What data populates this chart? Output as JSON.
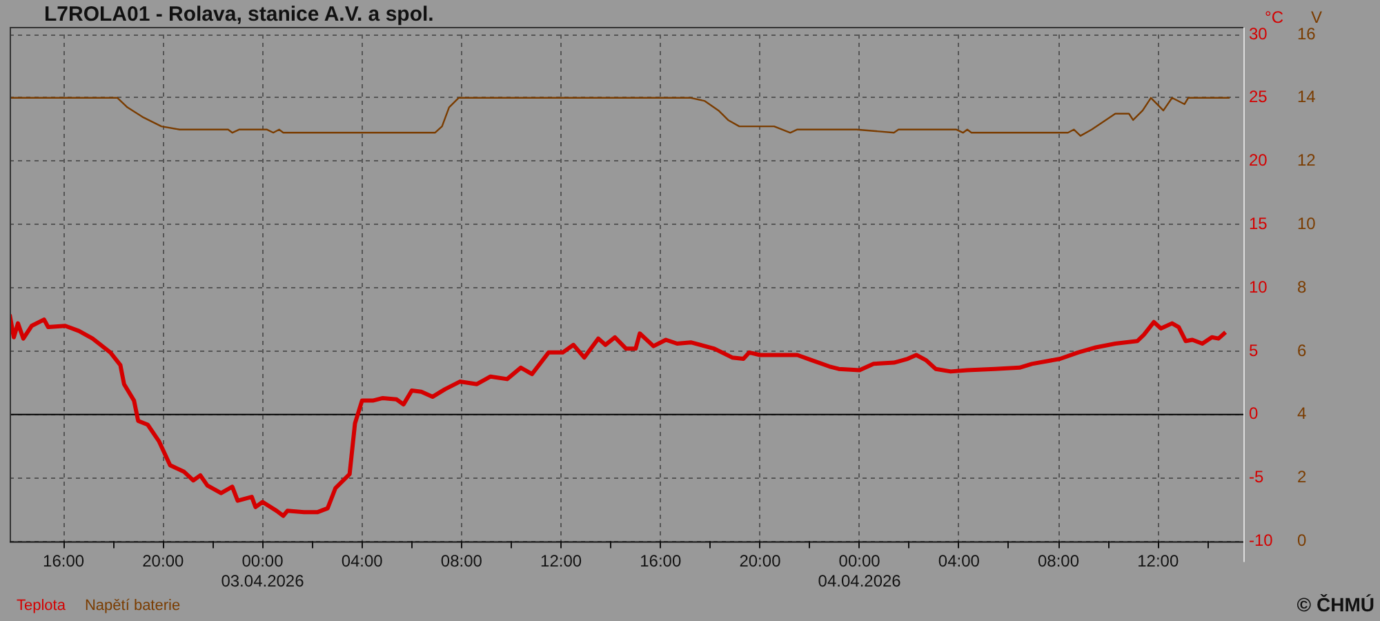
{
  "chart_data": {
    "type": "line",
    "title": "L7ROLA01 - Rolava, stanice A.V. a spol.",
    "ylabel": "°C",
    "y2label": "V",
    "xlim": [
      "2026-04-02T13:50",
      "2026-04-04T15:26"
    ],
    "xticks": [
      {
        "value": "2026-04-02T16:00",
        "label": "16:00"
      },
      {
        "value": "2026-04-02T18:00",
        "label": null
      },
      {
        "value": "2026-04-02T20:00",
        "label": "20:00"
      },
      {
        "value": "2026-04-02T22:00",
        "label": null
      },
      {
        "value": "2026-04-03T00:00",
        "label": "00:00\n03.04.2026"
      },
      {
        "value": "2026-04-03T02:00",
        "label": null
      },
      {
        "value": "2026-04-03T04:00",
        "label": "04:00"
      },
      {
        "value": "2026-04-03T06:00",
        "label": null
      },
      {
        "value": "2026-04-03T08:00",
        "label": "08:00"
      },
      {
        "value": "2026-04-03T10:00",
        "label": null
      },
      {
        "value": "2026-04-03T12:00",
        "label": "12:00"
      },
      {
        "value": "2026-04-03T14:00",
        "label": null
      },
      {
        "value": "2026-04-03T16:00",
        "label": "16:00"
      },
      {
        "value": "2026-04-03T18:00",
        "label": null
      },
      {
        "value": "2026-04-03T20:00",
        "label": "20:00"
      },
      {
        "value": "2026-04-03T22:00",
        "label": null
      },
      {
        "value": "2026-04-04T00:00",
        "label": "00:00\n04.04.2026"
      },
      {
        "value": "2026-04-04T02:00",
        "label": null
      },
      {
        "value": "2026-04-04T04:00",
        "label": "04:00"
      },
      {
        "value": "2026-04-04T06:00",
        "label": null
      },
      {
        "value": "2026-04-04T08:00",
        "label": "08:00"
      },
      {
        "value": "2026-04-04T10:00",
        "label": null
      },
      {
        "value": "2026-04-04T12:00",
        "label": "12:00"
      },
      {
        "value": "2026-04-04T14:00",
        "label": null
      }
    ],
    "ylim": [
      -10,
      30
    ],
    "yticks": [
      -10,
      -5,
      0,
      5,
      10,
      15,
      20,
      25,
      30
    ],
    "y2lim": [
      0,
      16
    ],
    "y2ticks": [
      0,
      2,
      4,
      6,
      8,
      10,
      12,
      14,
      16
    ],
    "grid": true,
    "legend": "bottom left",
    "ref_lines": [
      {
        "axis": "y",
        "value": 0,
        "color": "#000000"
      }
    ],
    "annotations": [
      "© ČHMÚ"
    ],
    "series": [
      {
        "name": "Teplota",
        "color": "#d40000",
        "x": [
          "2026-04-02T13:50",
          "2026-04-02T14:00",
          "2026-04-02T14:10",
          "2026-04-02T14:23",
          "2026-04-02T14:43",
          "2026-04-02T15:13",
          "2026-04-02T15:23",
          "2026-04-02T16:04",
          "2026-04-02T16:37",
          "2026-04-02T17:10",
          "2026-04-02T17:53",
          "2026-04-02T18:17",
          "2026-04-02T18:26",
          "2026-04-02T18:50",
          "2026-04-02T19:00",
          "2026-04-02T19:23",
          "2026-04-02T19:50",
          "2026-04-02T20:17",
          "2026-04-02T20:50",
          "2026-04-02T21:13",
          "2026-04-02T21:30",
          "2026-04-02T21:47",
          "2026-04-02T22:20",
          "2026-04-02T22:47",
          "2026-04-02T23:00",
          "2026-04-02T23:34",
          "2026-04-02T23:43",
          "2026-04-03T00:00",
          "2026-04-03T00:34",
          "2026-04-03T00:50",
          "2026-04-03T01:00",
          "2026-04-03T01:40",
          "2026-04-03T02:13",
          "2026-04-03T02:37",
          "2026-04-03T02:56",
          "2026-04-03T03:30",
          "2026-04-03T03:43",
          "2026-04-03T04:00",
          "2026-04-03T04:26",
          "2026-04-03T04:50",
          "2026-04-03T05:23",
          "2026-04-03T05:40",
          "2026-04-03T06:00",
          "2026-04-03T06:23",
          "2026-04-03T06:50",
          "2026-04-03T07:20",
          "2026-04-03T07:56",
          "2026-04-03T08:37",
          "2026-04-03T09:10",
          "2026-04-03T09:50",
          "2026-04-03T10:23",
          "2026-04-03T10:50",
          "2026-04-03T11:30",
          "2026-04-03T12:04",
          "2026-04-03T12:30",
          "2026-04-03T12:56",
          "2026-04-03T13:30",
          "2026-04-03T13:47",
          "2026-04-03T14:10",
          "2026-04-03T14:37",
          "2026-04-03T15:00",
          "2026-04-03T15:10",
          "2026-04-03T15:43",
          "2026-04-03T16:13",
          "2026-04-03T16:40",
          "2026-04-03T17:13",
          "2026-04-03T18:10",
          "2026-04-03T18:53",
          "2026-04-03T19:20",
          "2026-04-03T19:34",
          "2026-04-03T20:00",
          "2026-04-03T21:30",
          "2026-04-03T22:04",
          "2026-04-03T22:47",
          "2026-04-03T23:10",
          "2026-04-04T00:00",
          "2026-04-04T00:34",
          "2026-04-04T01:23",
          "2026-04-04T01:56",
          "2026-04-04T02:17",
          "2026-04-04T02:40",
          "2026-04-04T03:04",
          "2026-04-04T03:40",
          "2026-04-04T04:20",
          "2026-04-04T05:26",
          "2026-04-04T06:26",
          "2026-04-04T06:56",
          "2026-04-04T08:04",
          "2026-04-04T08:47",
          "2026-04-04T09:30",
          "2026-04-04T10:17",
          "2026-04-04T11:10",
          "2026-04-04T11:26",
          "2026-04-04T11:50",
          "2026-04-04T12:07",
          "2026-04-04T12:34",
          "2026-04-04T12:50",
          "2026-04-04T13:07",
          "2026-04-04T13:23",
          "2026-04-04T13:47",
          "2026-04-04T14:10",
          "2026-04-04T14:26",
          "2026-04-04T14:43"
        ],
        "values": [
          7.9,
          6.1,
          7.2,
          6.0,
          7.0,
          7.5,
          6.9,
          7.0,
          6.6,
          6.0,
          4.9,
          3.9,
          2.4,
          1.1,
          -0.5,
          -0.8,
          -2.1,
          -4.0,
          -4.5,
          -5.2,
          -4.8,
          -5.6,
          -6.2,
          -5.7,
          -6.8,
          -6.5,
          -7.3,
          -6.9,
          -7.6,
          -8.0,
          -7.6,
          -7.7,
          -7.7,
          -7.4,
          -5.8,
          -4.7,
          -0.7,
          1.1,
          1.1,
          1.3,
          1.2,
          0.8,
          1.9,
          1.8,
          1.4,
          2.0,
          2.6,
          2.4,
          3.0,
          2.8,
          3.7,
          3.2,
          4.9,
          4.9,
          5.5,
          4.5,
          6.0,
          5.5,
          6.1,
          5.2,
          5.2,
          6.4,
          5.4,
          5.9,
          5.6,
          5.7,
          5.2,
          4.5,
          4.4,
          4.9,
          4.7,
          4.7,
          4.3,
          3.8,
          3.6,
          3.5,
          4.0,
          4.1,
          4.4,
          4.7,
          4.3,
          3.6,
          3.4,
          3.5,
          3.6,
          3.7,
          4.0,
          4.4,
          4.9,
          5.3,
          5.6,
          5.8,
          6.3,
          7.3,
          6.8,
          7.2,
          6.9,
          5.8,
          5.9,
          5.6,
          6.1,
          6.0,
          6.5
        ]
      },
      {
        "name": "Napětí baterie",
        "color": "#7a3c00",
        "axis": "y2",
        "x": [
          "2026-04-02T13:50",
          "2026-04-02T18:10",
          "2026-04-02T18:34",
          "2026-04-02T19:10",
          "2026-04-02T19:56",
          "2026-04-02T20:40",
          "2026-04-02T22:37",
          "2026-04-02T22:47",
          "2026-04-02T23:04",
          "2026-04-03T00:10",
          "2026-04-03T00:26",
          "2026-04-03T00:40",
          "2026-04-03T00:50",
          "2026-04-03T06:56",
          "2026-04-03T07:13",
          "2026-04-03T07:30",
          "2026-04-03T07:53",
          "2026-04-03T17:13",
          "2026-04-03T17:47",
          "2026-04-03T18:20",
          "2026-04-03T18:43",
          "2026-04-03T19:10",
          "2026-04-03T20:34",
          "2026-04-03T21:13",
          "2026-04-03T21:30",
          "2026-04-03T23:53",
          "2026-04-04T01:23",
          "2026-04-04T01:34",
          "2026-04-04T03:53",
          "2026-04-04T04:10",
          "2026-04-04T04:20",
          "2026-04-04T04:30",
          "2026-04-04T08:23",
          "2026-04-04T08:37",
          "2026-04-04T08:53",
          "2026-04-04T09:20",
          "2026-04-04T09:43",
          "2026-04-04T10:17",
          "2026-04-04T10:50",
          "2026-04-04T11:00",
          "2026-04-04T11:23",
          "2026-04-04T11:43",
          "2026-04-04T12:13",
          "2026-04-04T12:34",
          "2026-04-04T13:04",
          "2026-04-04T13:13",
          "2026-04-04T14:53"
        ],
        "values": [
          14.0,
          14.0,
          13.7,
          13.4,
          13.1,
          13.0,
          13.0,
          12.9,
          13.0,
          13.0,
          12.9,
          13.0,
          12.9,
          12.9,
          13.1,
          13.7,
          14.0,
          14.0,
          13.9,
          13.6,
          13.3,
          13.1,
          13.1,
          12.9,
          13.0,
          13.0,
          12.9,
          13.0,
          13.0,
          12.9,
          13.0,
          12.9,
          12.9,
          13.0,
          12.8,
          13.0,
          13.2,
          13.5,
          13.5,
          13.3,
          13.6,
          14.0,
          13.6,
          14.0,
          13.8,
          14.0,
          14.0
        ]
      }
    ]
  }
}
